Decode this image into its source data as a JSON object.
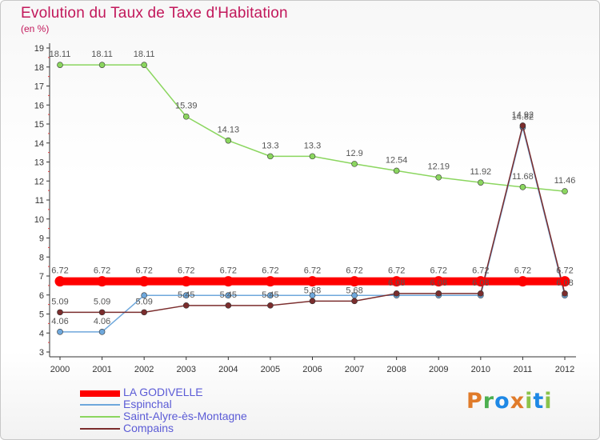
{
  "header": {
    "title": "Evolution du Taux de Taxe d'Habitation",
    "subtitle": "(en %)"
  },
  "logo": {
    "text": "Proxiti",
    "colors": [
      "#e07b2a",
      "#4caf50",
      "#1e88e5",
      "#e07b2a",
      "#8bc34a",
      "#1e88e5",
      "#8bc34a"
    ]
  },
  "chart_data": {
    "type": "line",
    "x": [
      "2000",
      "2001",
      "2002",
      "2003",
      "2004",
      "2005",
      "2006",
      "2007",
      "2008",
      "2009",
      "2010",
      "2011",
      "2012"
    ],
    "ylim": [
      3,
      19
    ],
    "yticks": [
      "3",
      "4",
      "5",
      "6",
      "7",
      "8",
      "9",
      "10",
      "11",
      "12",
      "13",
      "14",
      "15",
      "16",
      "17",
      "18",
      "19"
    ],
    "grid": false,
    "legend_placement": "bottom-left",
    "series": [
      {
        "name": "LA GODIVELLE",
        "color": "#ff0000",
        "values": [
          6.72,
          6.72,
          6.72,
          6.72,
          6.72,
          6.72,
          6.72,
          6.72,
          6.72,
          6.72,
          6.72,
          6.72,
          6.72
        ],
        "labels": [
          "6.72",
          "6.72",
          "6.72",
          "6.72",
          "6.72",
          "6.72",
          "6.72",
          "6.72",
          "6.72",
          "6.72",
          "6.72",
          "6.72",
          "6.72"
        ]
      },
      {
        "name": "Espinchal",
        "color": "#6fa8dc",
        "values": [
          4.06,
          4.06,
          5.98,
          5.98,
          5.98,
          5.98,
          5.98,
          5.98,
          5.98,
          5.98,
          5.98,
          14.82,
          5.98
        ],
        "labels": [
          "4.06",
          "4.06",
          "",
          "",
          "",
          "",
          "",
          "",
          "",
          "",
          "",
          "14.82",
          ""
        ]
      },
      {
        "name": "Saint-Alyre-ès-Montagne",
        "color": "#8bd65f",
        "values": [
          18.11,
          18.11,
          18.11,
          15.39,
          14.13,
          13.3,
          13.3,
          12.9,
          12.54,
          12.19,
          11.92,
          11.68,
          11.46
        ],
        "labels": [
          "18.11",
          "18.11",
          "18.11",
          "15.39",
          "14.13",
          "13.3",
          "13.3",
          "12.9",
          "12.54",
          "12.19",
          "11.92",
          "11.68",
          "11.46"
        ]
      },
      {
        "name": "Compains",
        "color": "#7b2d2d",
        "values": [
          5.09,
          5.09,
          5.09,
          5.45,
          5.45,
          5.45,
          5.68,
          5.68,
          6.08,
          6.08,
          6.08,
          14.92,
          6.08
        ],
        "labels": [
          "5.09",
          "5.09",
          "5.09",
          "5.45",
          "5.45",
          "5.45",
          "5.68",
          "5.68",
          "6.08",
          "6.08",
          "6.08",
          "14.92",
          "6.08"
        ]
      }
    ]
  }
}
